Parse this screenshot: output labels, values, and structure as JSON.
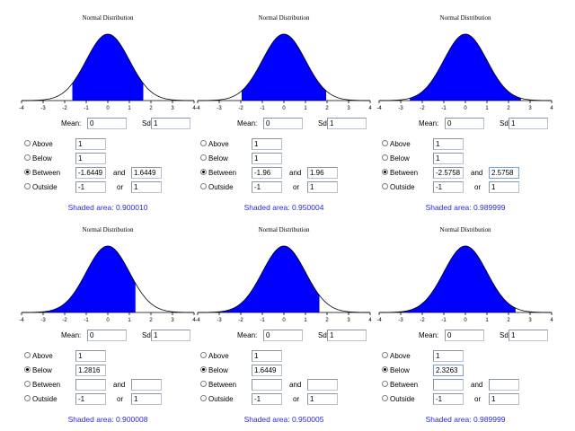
{
  "panels": [
    {
      "title": "Normal Distribution",
      "mean_label": "Mean:",
      "mean": "0",
      "sd_label": "Sd",
      "sd": "1",
      "options": {
        "above": "Above",
        "below": "Below",
        "between": "Between",
        "outside": "Outside"
      },
      "selected": "between",
      "above_value": "1",
      "below_value": "1",
      "between_low": "-1.6449",
      "between_and": "and",
      "between_high": "1.6449",
      "outside_low": "-1",
      "outside_or": "or",
      "outside_high": "1",
      "shaded_text": "Shaded area: 0.900010",
      "focus_field": ""
    },
    {
      "title": "Normal Distribution",
      "mean_label": "Mean:",
      "mean": "0",
      "sd_label": "Sd",
      "sd": "1",
      "options": {
        "above": "Above",
        "below": "Below",
        "between": "Between",
        "outside": "Outside"
      },
      "selected": "between",
      "above_value": "1",
      "below_value": "1",
      "between_low": "-1.96",
      "between_and": "and",
      "between_high": "1.96",
      "outside_low": "-1",
      "outside_or": "or",
      "outside_high": "1",
      "shaded_text": "Shaded area: 0.950004",
      "focus_field": ""
    },
    {
      "title": "Normal Distribution",
      "mean_label": "Mean:",
      "mean": "0",
      "sd_label": "Sd",
      "sd": "1",
      "options": {
        "above": "Above",
        "below": "Below",
        "between": "Between",
        "outside": "Outside"
      },
      "selected": "between",
      "above_value": "1",
      "below_value": "1",
      "between_low": "-2.5758",
      "between_and": "and",
      "between_high": "2.5758",
      "outside_low": "-1",
      "outside_or": "or",
      "outside_high": "1",
      "shaded_text": "Shaded area: 0.989999",
      "focus_field": "between_high"
    },
    {
      "title": "Normal Distribution",
      "mean_label": "Mean:",
      "mean": "0",
      "sd_label": "Sd",
      "sd": "1",
      "options": {
        "above": "Above",
        "below": "Below",
        "between": "Between",
        "outside": "Outside"
      },
      "selected": "below",
      "above_value": "1",
      "below_value": "1.2816",
      "between_low": "",
      "between_and": "and",
      "between_high": "",
      "outside_low": "-1",
      "outside_or": "or",
      "outside_high": "1",
      "shaded_text": "Shaded area: 0.900008",
      "focus_field": ""
    },
    {
      "title": "Normal Distribution",
      "mean_label": "Mean:",
      "mean": "0",
      "sd_label": "Sd",
      "sd": "1",
      "options": {
        "above": "Above",
        "below": "Below",
        "between": "Between",
        "outside": "Outside"
      },
      "selected": "below",
      "above_value": "1",
      "below_value": "1.6449",
      "between_low": "",
      "between_and": "and",
      "between_high": "",
      "outside_low": "-1",
      "outside_or": "or",
      "outside_high": "1",
      "shaded_text": "Shaded area: 0.950005",
      "focus_field": ""
    },
    {
      "title": "Normal Distribution",
      "mean_label": "Mean:",
      "mean": "0",
      "sd_label": "Sd",
      "sd": "1",
      "options": {
        "above": "Above",
        "below": "Below",
        "between": "Between",
        "outside": "Outside"
      },
      "selected": "below",
      "above_value": "1",
      "below_value": "2.3263",
      "between_low": "",
      "between_and": "and",
      "between_high": "",
      "outside_low": "-1",
      "outside_or": "or",
      "outside_high": "1",
      "shaded_text": "Shaded area: 0.989999",
      "focus_field": "below_value"
    }
  ],
  "chart_data": [
    {
      "type": "area",
      "title": "Normal Distribution",
      "xlabel": "",
      "ylabel": "",
      "xlim": [
        -4,
        4
      ],
      "x_ticks": [
        -4,
        -3,
        -2,
        -1,
        0,
        1,
        2,
        3,
        4
      ],
      "mean": 0,
      "sd": 1,
      "shade": "between",
      "shade_from": -1.6449,
      "shade_to": 1.6449,
      "shade_color": "#0000ff",
      "curve_color": "#000000"
    },
    {
      "type": "area",
      "title": "Normal Distribution",
      "xlabel": "",
      "ylabel": "",
      "xlim": [
        -4,
        4
      ],
      "x_ticks": [
        -4,
        -3,
        -2,
        -1,
        0,
        1,
        2,
        3,
        4
      ],
      "mean": 0,
      "sd": 1,
      "shade": "between",
      "shade_from": -1.96,
      "shade_to": 1.96,
      "shade_color": "#0000ff",
      "curve_color": "#000000"
    },
    {
      "type": "area",
      "title": "Normal Distribution",
      "xlabel": "",
      "ylabel": "",
      "xlim": [
        -4,
        4
      ],
      "x_ticks": [
        -4,
        -3,
        -2,
        -1,
        0,
        1,
        2,
        3,
        4
      ],
      "mean": 0,
      "sd": 1,
      "shade": "between",
      "shade_from": -2.5758,
      "shade_to": 2.5758,
      "shade_color": "#0000ff",
      "curve_color": "#000000"
    },
    {
      "type": "area",
      "title": "Normal Distribution",
      "xlabel": "",
      "ylabel": "",
      "xlim": [
        -4,
        4
      ],
      "x_ticks": [
        -4,
        -3,
        -2,
        -1,
        0,
        1,
        2,
        3,
        4
      ],
      "mean": 0,
      "sd": 1,
      "shade": "below",
      "shade_from": -4,
      "shade_to": 1.2816,
      "shade_color": "#0000ff",
      "curve_color": "#000000"
    },
    {
      "type": "area",
      "title": "Normal Distribution",
      "xlabel": "",
      "ylabel": "",
      "xlim": [
        -4,
        4
      ],
      "x_ticks": [
        -4,
        -3,
        -2,
        -1,
        0,
        1,
        2,
        3,
        4
      ],
      "mean": 0,
      "sd": 1,
      "shade": "below",
      "shade_from": -4,
      "shade_to": 1.6449,
      "shade_color": "#0000ff",
      "curve_color": "#000000"
    },
    {
      "type": "area",
      "title": "Normal Distribution",
      "xlabel": "",
      "ylabel": "",
      "xlim": [
        -4,
        4
      ],
      "x_ticks": [
        -4,
        -3,
        -2,
        -1,
        0,
        1,
        2,
        3,
        4
      ],
      "mean": 0,
      "sd": 1,
      "shade": "below",
      "shade_from": -4,
      "shade_to": 2.3263,
      "shade_color": "#0000ff",
      "curve_color": "#000000"
    }
  ]
}
